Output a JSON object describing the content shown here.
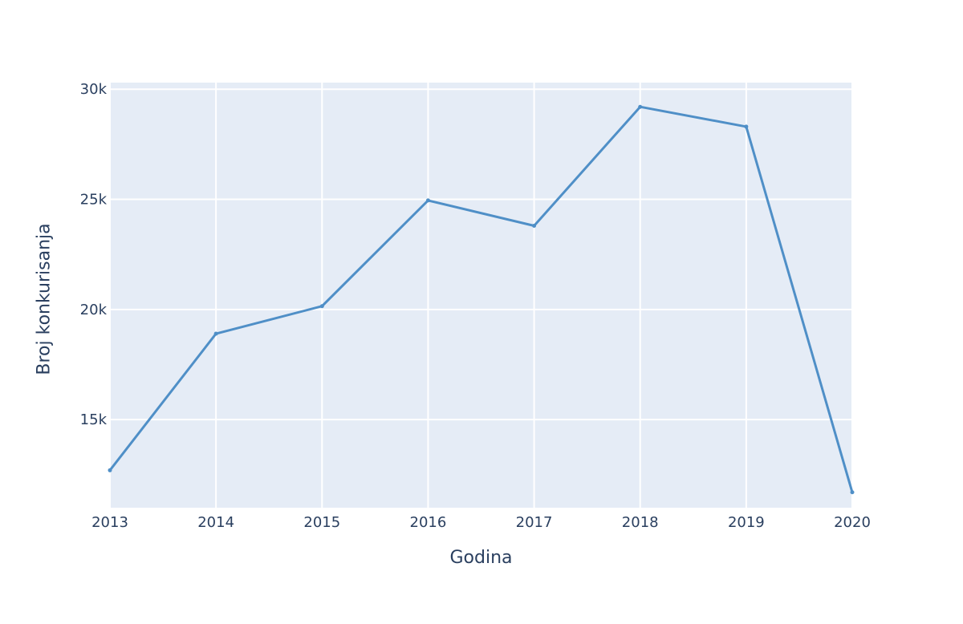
{
  "chart_data": {
    "type": "line",
    "title": "",
    "xlabel": "Godina",
    "ylabel": "Broj konkurisanja",
    "x": [
      2013,
      2014,
      2015,
      2016,
      2017,
      2018,
      2019,
      2020
    ],
    "series": [
      {
        "values": [
          12700,
          18900,
          20150,
          24950,
          23800,
          29200,
          28300,
          11700
        ]
      }
    ],
    "xlim": [
      2013,
      2020
    ],
    "ylim": [
      11000,
      30300
    ],
    "x_ticks": [
      "2013",
      "2014",
      "2015",
      "2016",
      "2017",
      "2018",
      "2019",
      "2020"
    ],
    "y_ticks": [
      {
        "value": 15000,
        "label": "15k"
      },
      {
        "value": 20000,
        "label": "20k"
      },
      {
        "value": 25000,
        "label": "25k"
      },
      {
        "value": 30000,
        "label": "30k"
      }
    ],
    "grid": true,
    "legend": "none",
    "colors": {
      "plot_background": "#e5ecf6",
      "gridline": "#ffffff",
      "line": "#4f8fc7",
      "text": "#2a3f5f"
    }
  }
}
